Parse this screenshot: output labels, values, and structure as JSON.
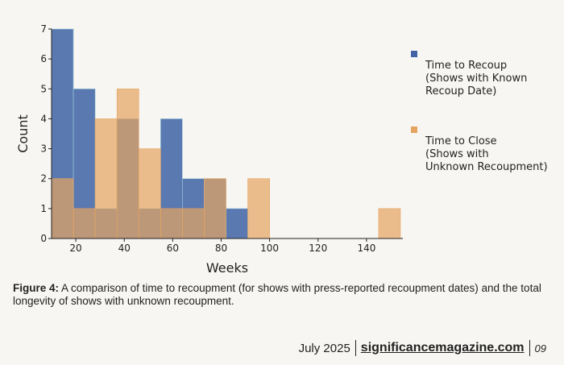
{
  "chart_data": {
    "type": "histogram",
    "title": "",
    "xlabel": "Weeks",
    "ylabel": "Count",
    "xlim": [
      10,
      155
    ],
    "ylim": [
      0,
      7
    ],
    "xticks": [
      20,
      40,
      60,
      80,
      100,
      120,
      140
    ],
    "yticks": [
      0,
      1,
      2,
      3,
      4,
      5,
      6,
      7
    ],
    "grid": false,
    "legend_position": "right",
    "series": [
      {
        "name": "Time to Recoup\n(Shows with Known\nRecoup Date)",
        "color": "#3f63a6",
        "bins": [
          {
            "x0": 10,
            "x1": 19,
            "count": 7
          },
          {
            "x0": 19,
            "x1": 28,
            "count": 5
          },
          {
            "x0": 28,
            "x1": 37,
            "count": 1
          },
          {
            "x0": 37,
            "x1": 46,
            "count": 4
          },
          {
            "x0": 46,
            "x1": 55,
            "count": 1
          },
          {
            "x0": 55,
            "x1": 64,
            "count": 4
          },
          {
            "x0": 64,
            "x1": 73,
            "count": 2
          },
          {
            "x0": 73,
            "x1": 82,
            "count": 2
          },
          {
            "x0": 82,
            "x1": 91,
            "count": 1
          }
        ]
      },
      {
        "name": "Time to Close\n(Shows with\nUnknown Recoupment)",
        "color": "#e5a460",
        "bins": [
          {
            "x0": 10,
            "x1": 19,
            "count": 2
          },
          {
            "x0": 19,
            "x1": 28,
            "count": 1
          },
          {
            "x0": 28,
            "x1": 37,
            "count": 4
          },
          {
            "x0": 37,
            "x1": 46,
            "count": 5
          },
          {
            "x0": 46,
            "x1": 55,
            "count": 3
          },
          {
            "x0": 55,
            "x1": 64,
            "count": 1
          },
          {
            "x0": 64,
            "x1": 73,
            "count": 1
          },
          {
            "x0": 73,
            "x1": 82,
            "count": 2
          },
          {
            "x0": 82,
            "x1": 91,
            "count": 0
          },
          {
            "x0": 91,
            "x1": 100,
            "count": 2
          },
          {
            "x0": 145,
            "x1": 154,
            "count": 1
          }
        ]
      }
    ]
  },
  "legend": {
    "recoup_label": "Time to Recoup\n(Shows with Known\nRecoup Date)",
    "close_label": "Time to Close\n(Shows with\nUnknown Recoupment)"
  },
  "caption": {
    "prefix": "Figure 4:",
    "text": "A comparison of time to recoupment (for shows with press-reported recoupment dates) and the total longevity of shows with unknown recoupment."
  },
  "footer": {
    "date": "July 2025",
    "site": "significancemagazine.com",
    "page": "09"
  },
  "colors": {
    "recoup": "#3f63a6",
    "close": "#e5a460",
    "overlap": "#8a7155"
  }
}
